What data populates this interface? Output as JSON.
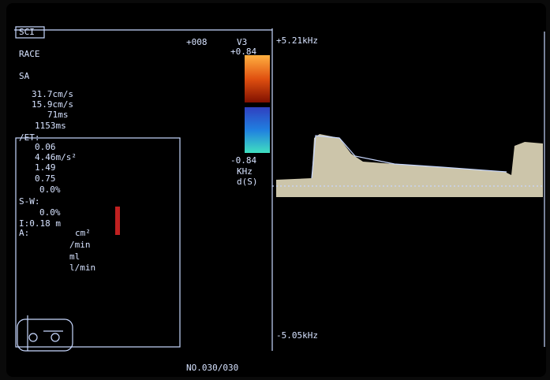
{
  "header": {
    "mode": "SCI",
    "depth": "+008",
    "probe": "V3"
  },
  "color_scale": {
    "top": "+0.84",
    "bottom": "-0.84",
    "unit": "KHz",
    "mode": "d(S)"
  },
  "spectrum_scale": {
    "top": "+5.21kHz",
    "bottom": "-5.05kHz"
  },
  "left_panel": {
    "title": "RACE",
    "subtitle": "SA",
    "lines": [
      "31.7cm/s",
      "15.9cm/s",
      "71ms",
      "1153ms",
      "/ET:",
      "0.06",
      "4.46m/s²",
      "1.49",
      "0.75",
      "0.0%",
      "S-W:",
      "0.0%",
      "I:0.18 m",
      "A:",
      "cm²",
      "/min",
      "ml",
      "l/min"
    ]
  },
  "footer": {
    "frame": "NO.030/030"
  }
}
